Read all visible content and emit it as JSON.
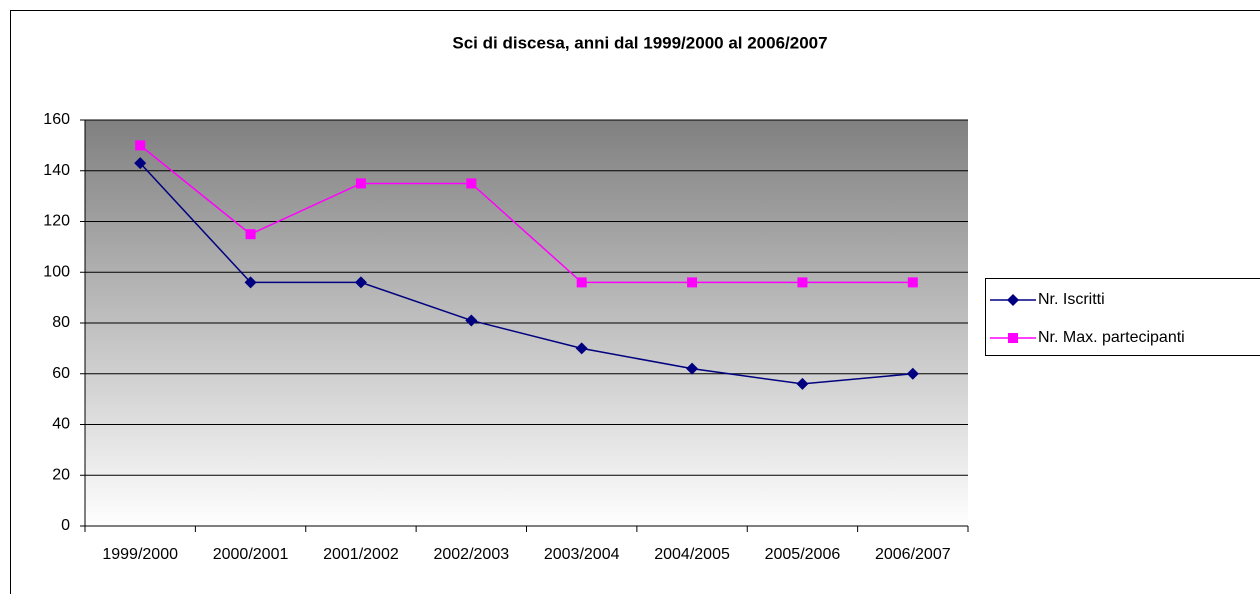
{
  "chart_data": {
    "type": "line",
    "title": "Sci di discesa, anni dal 1999/2000 al 2006/2007",
    "categories": [
      "1999/2000",
      "2000/2001",
      "2001/2002",
      "2002/2003",
      "2003/2004",
      "2004/2005",
      "2005/2006",
      "2006/2007"
    ],
    "series": [
      {
        "name": "Nr. Iscritti",
        "color": "#000080",
        "marker": "diamond",
        "values": [
          143,
          96,
          96,
          81,
          70,
          62,
          56,
          60
        ]
      },
      {
        "name": "Nr. Max. partecipanti",
        "color": "#ff00ff",
        "marker": "square",
        "values": [
          150,
          115,
          135,
          135,
          96,
          96,
          96,
          96
        ]
      }
    ],
    "ylim": [
      0,
      160
    ],
    "yticks": [
      0,
      20,
      40,
      60,
      80,
      100,
      120,
      140,
      160
    ],
    "grid": true,
    "legend": "right"
  }
}
